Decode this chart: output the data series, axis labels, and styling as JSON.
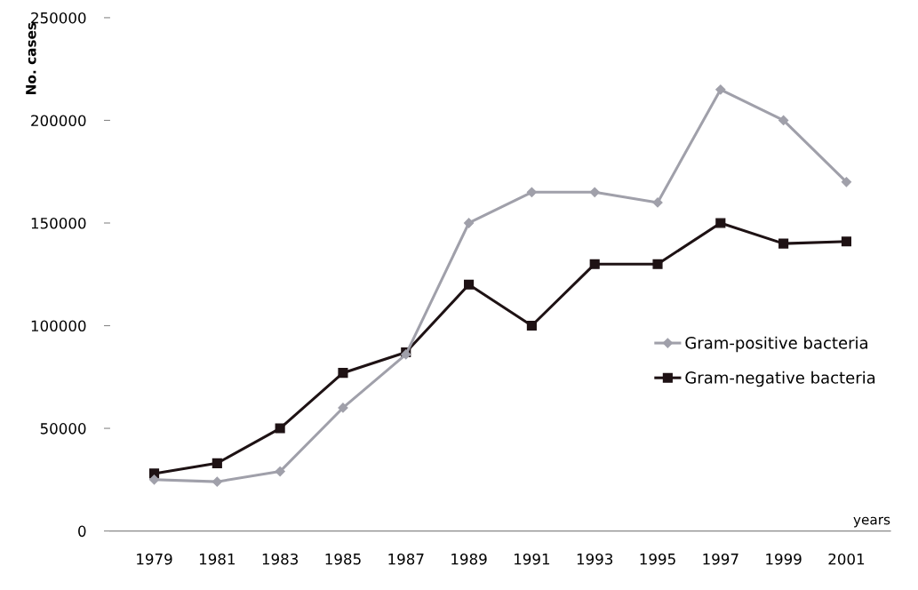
{
  "chart_data": {
    "type": "line",
    "xlabel": "years",
    "ylabel": "No. cases",
    "categories": [
      "1979",
      "1981",
      "1983",
      "1985",
      "1987",
      "1989",
      "1991",
      "1993",
      "1995",
      "1997",
      "1999",
      "2001"
    ],
    "series": [
      {
        "name": "Gram-positive bacteria",
        "color": "#a0a0aa",
        "marker": "diamond",
        "values": [
          25000,
          24000,
          29000,
          60000,
          86000,
          150000,
          165000,
          165000,
          160000,
          215000,
          200000,
          170000
        ]
      },
      {
        "name": "Gram-negative bacteria",
        "color": "#1e1214",
        "marker": "square",
        "values": [
          28000,
          33000,
          50000,
          77000,
          87000,
          120000,
          100000,
          130000,
          130000,
          150000,
          140000,
          141000
        ]
      }
    ],
    "ylim": [
      0,
      250000
    ],
    "yticks": [
      0,
      50000,
      100000,
      150000,
      200000,
      250000
    ],
    "grid": false,
    "legend": "right",
    "line_style": "solid"
  }
}
